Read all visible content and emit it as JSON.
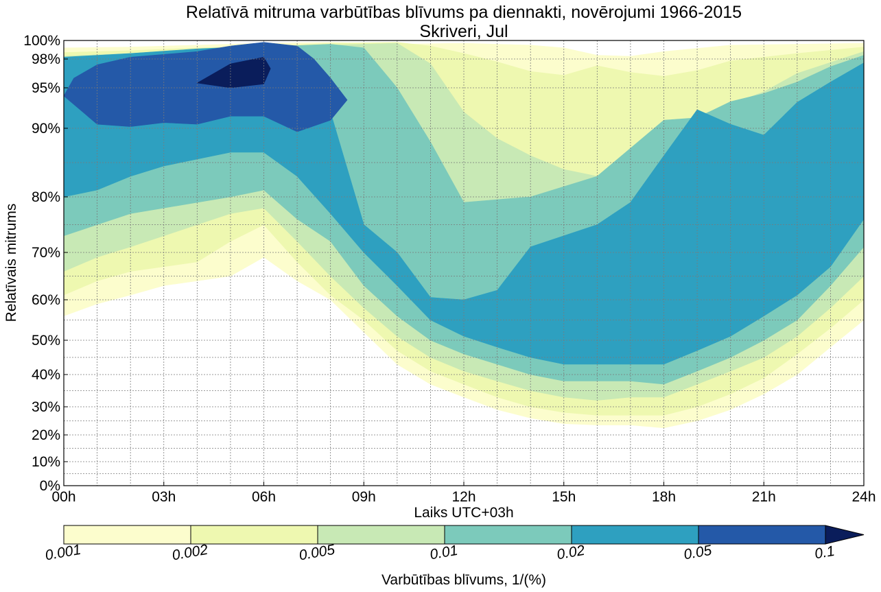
{
  "chart_data": {
    "type": "contour",
    "title": "Relatīvā mitruma varbūtības blīvums pa diennakti, novērojumi 1966-2015",
    "subtitle": "Skriveri, Jul",
    "xlabel": "Laiks UTC+03h",
    "ylabel": "Relatīvais mitrums",
    "x_ticks": [
      "00h",
      "03h",
      "06h",
      "09h",
      "12h",
      "15h",
      "18h",
      "21h",
      "24h"
    ],
    "x_range_hours": [
      0,
      24
    ],
    "y_ticks": [
      "0%",
      "10%",
      "20%",
      "30%",
      "40%",
      "50%",
      "60%",
      "70%",
      "80%",
      "90%",
      "95%",
      "98%",
      "100%"
    ],
    "y_tick_values": [
      0,
      10,
      20,
      30,
      40,
      50,
      60,
      70,
      80,
      90,
      95,
      98,
      100
    ],
    "y_scale": "nonlinear (expanded near 100%)",
    "grid": true,
    "colorbar": {
      "label": "Varbūtības blīvums, 1/(%)",
      "levels": [
        "0.001",
        "0.002",
        "0.005",
        "0.01",
        "0.02",
        "0.05",
        "0.1"
      ],
      "colors": [
        "#fcfdcd",
        "#eef8b0",
        "#c8e9b5",
        "#7ccabb",
        "#2ea0c0",
        "#2459a8",
        "#0a1d5b"
      ],
      "extend": "max",
      "placement": "bottom"
    },
    "regions": [
      {
        "level": "0.001",
        "boundary": [
          [
            0,
            56
          ],
          [
            1,
            59
          ],
          [
            2,
            61
          ],
          [
            3,
            63
          ],
          [
            4,
            64
          ],
          [
            5,
            65
          ],
          [
            6,
            69
          ],
          [
            7,
            64
          ],
          [
            8,
            60
          ],
          [
            9,
            52
          ],
          [
            10,
            43
          ],
          [
            11,
            37
          ],
          [
            12,
            33
          ],
          [
            13,
            29
          ],
          [
            14,
            26
          ],
          [
            15,
            24
          ],
          [
            16,
            23.5
          ],
          [
            17,
            23.5
          ],
          [
            18,
            22.5
          ],
          [
            19,
            25
          ],
          [
            20,
            29
          ],
          [
            21,
            34
          ],
          [
            22,
            40
          ],
          [
            23,
            48
          ],
          [
            24,
            55
          ],
          [
            24,
            99.7
          ],
          [
            22,
            99.6
          ],
          [
            20,
            99.5
          ],
          [
            18,
            98.8
          ],
          [
            17,
            98.3
          ],
          [
            16,
            98.4
          ],
          [
            15,
            99.2
          ],
          [
            14,
            99.5
          ],
          [
            12,
            99.7
          ],
          [
            10,
            99.6
          ],
          [
            8,
            99.8
          ],
          [
            6,
            99.7
          ],
          [
            4,
            99.5
          ],
          [
            2,
            99.3
          ],
          [
            0,
            99.2
          ]
        ]
      },
      {
        "level": "0.002",
        "boundary": [
          [
            0,
            61
          ],
          [
            1,
            64
          ],
          [
            2,
            66
          ],
          [
            3,
            67
          ],
          [
            4,
            68
          ],
          [
            5,
            72
          ],
          [
            6,
            75
          ],
          [
            7,
            68
          ],
          [
            8,
            61
          ],
          [
            9,
            55
          ],
          [
            10,
            47
          ],
          [
            11,
            41
          ],
          [
            12,
            37
          ],
          [
            13,
            33
          ],
          [
            14,
            30
          ],
          [
            15,
            28
          ],
          [
            16,
            27
          ],
          [
            17,
            27
          ],
          [
            18,
            27
          ],
          [
            19,
            30
          ],
          [
            20,
            34
          ],
          [
            21,
            39
          ],
          [
            22,
            46
          ],
          [
            23,
            53
          ],
          [
            24,
            60
          ],
          [
            24,
            99.3
          ],
          [
            22,
            98.6
          ],
          [
            20,
            97.8
          ],
          [
            19,
            96.8
          ],
          [
            18,
            96.2
          ],
          [
            17,
            96.6
          ],
          [
            16,
            97.3
          ],
          [
            15,
            96.3
          ],
          [
            14,
            96.7
          ],
          [
            13,
            97.7
          ],
          [
            12,
            98.6
          ],
          [
            11,
            99.4
          ],
          [
            10,
            99.8
          ],
          [
            8,
            99.7
          ],
          [
            6,
            99.4
          ],
          [
            4,
            99.2
          ],
          [
            2,
            98.9
          ],
          [
            0,
            98.7
          ]
        ]
      },
      {
        "level": "0.005",
        "boundary": [
          [
            0,
            66
          ],
          [
            1,
            69
          ],
          [
            2,
            71
          ],
          [
            3,
            73
          ],
          [
            4,
            75
          ],
          [
            5,
            77
          ],
          [
            6,
            78
          ],
          [
            7,
            72
          ],
          [
            8,
            65
          ],
          [
            9,
            58
          ],
          [
            10,
            51
          ],
          [
            11,
            45
          ],
          [
            12,
            41
          ],
          [
            13,
            38
          ],
          [
            14,
            35
          ],
          [
            15,
            33
          ],
          [
            16,
            32
          ],
          [
            17,
            33
          ],
          [
            18,
            33
          ],
          [
            19,
            37
          ],
          [
            20,
            41
          ],
          [
            21,
            45
          ],
          [
            22,
            51
          ],
          [
            23,
            58
          ],
          [
            24,
            65
          ],
          [
            24,
            98.8
          ],
          [
            22,
            96.5
          ],
          [
            21,
            94.5
          ],
          [
            20,
            93
          ],
          [
            19,
            91.5
          ],
          [
            18,
            85
          ],
          [
            17,
            84
          ],
          [
            16,
            83
          ],
          [
            15,
            84
          ],
          [
            14,
            86
          ],
          [
            13,
            88.5
          ],
          [
            12,
            92
          ],
          [
            11,
            97.5
          ],
          [
            10,
            99.7
          ],
          [
            8,
            99.5
          ],
          [
            6,
            99.2
          ],
          [
            4,
            99
          ],
          [
            2,
            98.6
          ],
          [
            0,
            98.3
          ]
        ]
      },
      {
        "level": "0.01",
        "boundary": [
          [
            0,
            73
          ],
          [
            1,
            75
          ],
          [
            2,
            77
          ],
          [
            3,
            78
          ],
          [
            4,
            79
          ],
          [
            5,
            80
          ],
          [
            6,
            81
          ],
          [
            7,
            76
          ],
          [
            8,
            72
          ],
          [
            9,
            63
          ],
          [
            10,
            56
          ],
          [
            11,
            50
          ],
          [
            12,
            46
          ],
          [
            13,
            43
          ],
          [
            14,
            40
          ],
          [
            15,
            38
          ],
          [
            16,
            38
          ],
          [
            17,
            38
          ],
          [
            18,
            37
          ],
          [
            19,
            41
          ],
          [
            20,
            45
          ],
          [
            21,
            50
          ],
          [
            22,
            55
          ],
          [
            23,
            63
          ],
          [
            24,
            71
          ],
          [
            24,
            98.4
          ],
          [
            23,
            97.2
          ],
          [
            22,
            95.6
          ],
          [
            21,
            94.3
          ],
          [
            20,
            93.3
          ],
          [
            19,
            91.3
          ],
          [
            18,
            91
          ],
          [
            16,
            83
          ],
          [
            14,
            80
          ],
          [
            12,
            79
          ],
          [
            11,
            88
          ],
          [
            10,
            95
          ],
          [
            9,
            99.2
          ],
          [
            8,
            99.6
          ],
          [
            6,
            99.3
          ],
          [
            4,
            98.9
          ],
          [
            2,
            98.4
          ],
          [
            0,
            98
          ]
        ]
      },
      {
        "level": "0.02",
        "boundary": [
          [
            0,
            80
          ],
          [
            1,
            81
          ],
          [
            2,
            83
          ],
          [
            3,
            84.5
          ],
          [
            4,
            85.5
          ],
          [
            5,
            86.5
          ],
          [
            6,
            86.5
          ],
          [
            7,
            83
          ],
          [
            8,
            77
          ],
          [
            9,
            70
          ],
          [
            10,
            63
          ],
          [
            11,
            55
          ],
          [
            12,
            51
          ],
          [
            13,
            48
          ],
          [
            14,
            45
          ],
          [
            15,
            43
          ],
          [
            16,
            43
          ],
          [
            17,
            43
          ],
          [
            18,
            43
          ],
          [
            19,
            47
          ],
          [
            20,
            51
          ],
          [
            21,
            56
          ],
          [
            22,
            61
          ],
          [
            23,
            67
          ],
          [
            24,
            76
          ],
          [
            24,
            97.6
          ],
          [
            23,
            95.6
          ],
          [
            22,
            93.2
          ],
          [
            21,
            89
          ],
          [
            20,
            90.5
          ],
          [
            19,
            92.3
          ],
          [
            18,
            86
          ],
          [
            17,
            79
          ],
          [
            16,
            75
          ],
          [
            14,
            71
          ],
          [
            13,
            62
          ],
          [
            12,
            60
          ],
          [
            11,
            60.5
          ],
          [
            10,
            70
          ],
          [
            9,
            75
          ],
          [
            8,
            92
          ],
          [
            7,
            98
          ],
          [
            6,
            99.4
          ],
          [
            4,
            99.1
          ],
          [
            2,
            98.6
          ],
          [
            0,
            98.2
          ]
        ]
      },
      {
        "level": "0.05",
        "boundary": [
          [
            0,
            94
          ],
          [
            1,
            90.5
          ],
          [
            2,
            90.2
          ],
          [
            3,
            90.7
          ],
          [
            4,
            90.5
          ],
          [
            5,
            91.5
          ],
          [
            6,
            91.5
          ],
          [
            7,
            89.5
          ],
          [
            8,
            91
          ],
          [
            8.5,
            93.5
          ],
          [
            8,
            96
          ],
          [
            7.5,
            98
          ],
          [
            7,
            99.4
          ],
          [
            6,
            99.8
          ],
          [
            5,
            99.4
          ],
          [
            4,
            98.8
          ],
          [
            3,
            98.5
          ],
          [
            2,
            98.2
          ],
          [
            1,
            97.4
          ],
          [
            0.3,
            96
          ]
        ]
      },
      {
        "level": "0.1",
        "boundary": [
          [
            4,
            95.5
          ],
          [
            5,
            97.5
          ],
          [
            6,
            98.2
          ],
          [
            6.2,
            97
          ],
          [
            6,
            95.4
          ],
          [
            5,
            95
          ]
        ]
      }
    ]
  }
}
